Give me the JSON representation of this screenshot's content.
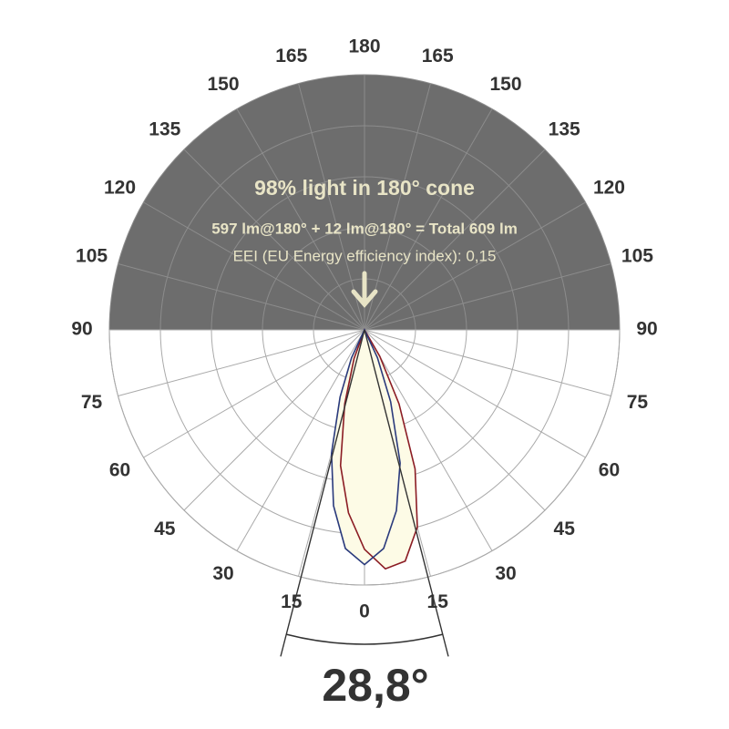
{
  "chart_data": {
    "type": "polar",
    "title": "98% light in 180° cone",
    "subtitle": "597 lm@180° + 12 lm@180° = Total 609 lm",
    "annotation": "EEI (EU Energy efficiency index): 0,15",
    "angle_ticks": [
      0,
      15,
      30,
      45,
      60,
      75,
      90,
      105,
      120,
      135,
      150,
      165,
      180
    ],
    "rlim": [
      0,
      5
    ],
    "rings": [
      1,
      2,
      3,
      4,
      5
    ],
    "upper_color": "#6d6d6d",
    "fill_color": "#fdfbe6",
    "series": [
      {
        "color": "#8b1c24",
        "angles": [
          -25,
          -20,
          -15,
          -10,
          -5,
          0,
          5,
          10,
          15,
          20,
          25,
          30,
          35
        ],
        "values": [
          0,
          0.6,
          1.5,
          2.7,
          3.6,
          4.3,
          4.7,
          4.6,
          4.0,
          2.9,
          1.6,
          0.6,
          0
        ]
      },
      {
        "color": "#2a3a7c",
        "angles": [
          -30,
          -25,
          -20,
          -15,
          -10,
          -5,
          0,
          5,
          10,
          15,
          20,
          25,
          30
        ],
        "values": [
          0,
          0.6,
          1.4,
          2.5,
          3.5,
          4.3,
          4.6,
          4.3,
          3.6,
          2.7,
          1.5,
          0.6,
          0
        ]
      }
    ],
    "beam_angle": {
      "value": 28.8,
      "label": "28,8°"
    }
  }
}
